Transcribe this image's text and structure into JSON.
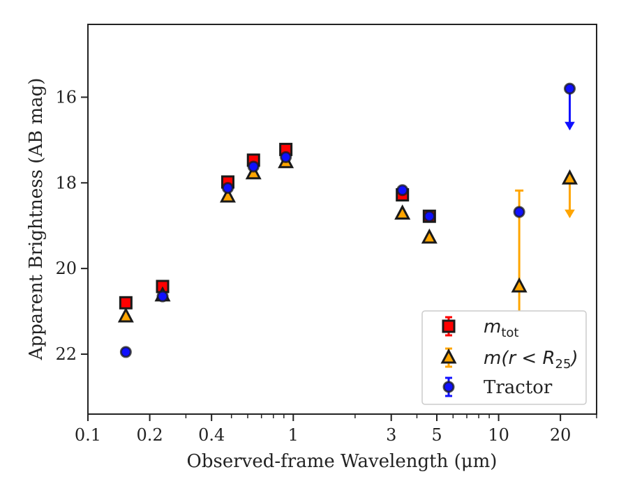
{
  "chart_data": {
    "type": "scatter",
    "xlabel": "Observed-frame Wavelength (μm)",
    "ylabel": "Apparent Brightness (AB mag)",
    "xscale": "log",
    "xlim": [
      0.1,
      30
    ],
    "ylim": [
      23.4,
      14.3
    ],
    "y_inverted": true,
    "xticks": [
      {
        "value": 0.1,
        "label": "0.1"
      },
      {
        "value": 0.2,
        "label": "0.2"
      },
      {
        "value": 0.4,
        "label": "0.4"
      },
      {
        "value": 1,
        "label": "1"
      },
      {
        "value": 3,
        "label": "3"
      },
      {
        "value": 5,
        "label": "5"
      },
      {
        "value": 10,
        "label": "10"
      },
      {
        "value": 20,
        "label": "20"
      }
    ],
    "yticks": [
      {
        "value": 16,
        "label": "16"
      },
      {
        "value": 18,
        "label": "18"
      },
      {
        "value": 20,
        "label": "20"
      },
      {
        "value": 22,
        "label": "22"
      }
    ],
    "legend_position": "lower-right",
    "grid": false,
    "series": [
      {
        "name": "m_tot",
        "legend_main": "m",
        "legend_sub": "tot",
        "marker": "square",
        "color": "#ff0000",
        "edge": "#1a1a1a",
        "points": [
          {
            "x": 0.153,
            "y": 20.8
          },
          {
            "x": 0.231,
            "y": 20.42
          },
          {
            "x": 0.48,
            "y": 17.98
          },
          {
            "x": 0.64,
            "y": 17.47
          },
          {
            "x": 0.92,
            "y": 17.22
          },
          {
            "x": 3.4,
            "y": 18.28
          },
          {
            "x": 4.6,
            "y": 18.78
          }
        ]
      },
      {
        "name": "m(r < R25)",
        "legend_main": "m(r < R",
        "legend_sub": "25",
        "legend_tail": ")",
        "marker": "triangle",
        "color": "#ffa500",
        "edge": "#1a1a1a",
        "points": [
          {
            "x": 0.153,
            "y": 21.12
          },
          {
            "x": 0.231,
            "y": 20.63
          },
          {
            "x": 0.48,
            "y": 18.32
          },
          {
            "x": 0.64,
            "y": 17.78
          },
          {
            "x": 0.92,
            "y": 17.52
          },
          {
            "x": 3.4,
            "y": 18.72
          },
          {
            "x": 4.6,
            "y": 19.28
          },
          {
            "x": 12.6,
            "y": 20.42,
            "yerr_low": 18.18,
            "yerr_high": 22.7
          },
          {
            "x": 22.2,
            "y": 17.9,
            "upper_limit": true,
            "arrow_to": 18.8
          }
        ]
      },
      {
        "name": "Tractor",
        "legend_main": "Tractor",
        "marker": "circle",
        "color": "#1010ff",
        "edge": "#1a1a1a",
        "points": [
          {
            "x": 0.153,
            "y": 21.95
          },
          {
            "x": 0.231,
            "y": 20.65
          },
          {
            "x": 0.48,
            "y": 18.12
          },
          {
            "x": 0.64,
            "y": 17.62
          },
          {
            "x": 0.92,
            "y": 17.4
          },
          {
            "x": 3.4,
            "y": 18.17
          },
          {
            "x": 4.6,
            "y": 18.78
          },
          {
            "x": 12.6,
            "y": 18.68
          },
          {
            "x": 22.2,
            "y": 15.8,
            "upper_limit": true,
            "arrow_to": 16.75
          }
        ]
      }
    ]
  }
}
